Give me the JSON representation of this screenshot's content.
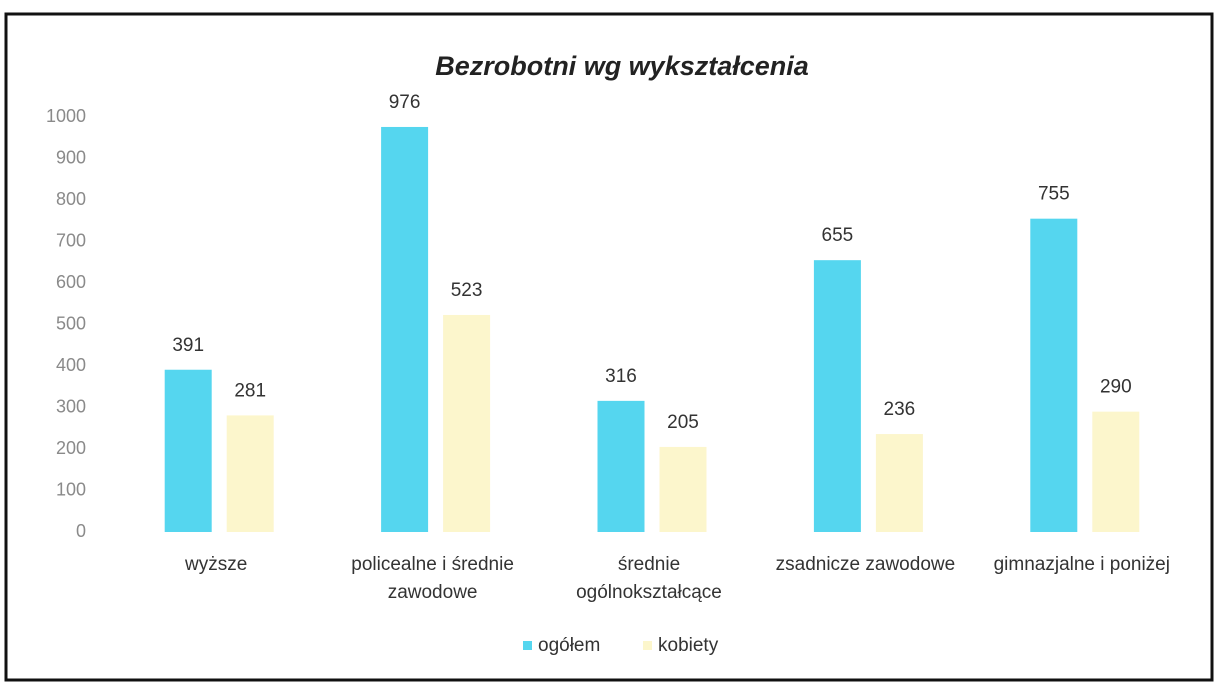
{
  "chart_data": {
    "type": "bar",
    "title": "Bezrobotni wg wykształcenia",
    "categories": [
      "wyższe",
      "policealne i średnie zawodowe",
      "średnie ogólnokształcące",
      "zsadnicze zawodowe",
      "gimnazjalne i poniżej"
    ],
    "series": [
      {
        "name": "ogółem",
        "color": "#55d6ef",
        "values": [
          391,
          976,
          316,
          655,
          755
        ]
      },
      {
        "name": "kobiety",
        "color": "#fcf6cc",
        "values": [
          281,
          523,
          205,
          236,
          290
        ]
      }
    ],
    "ylim": [
      0,
      1000
    ],
    "yticks": [
      0,
      100,
      200,
      300,
      400,
      500,
      600,
      700,
      800,
      900,
      1000
    ],
    "grid": false,
    "legend": "bottom"
  }
}
